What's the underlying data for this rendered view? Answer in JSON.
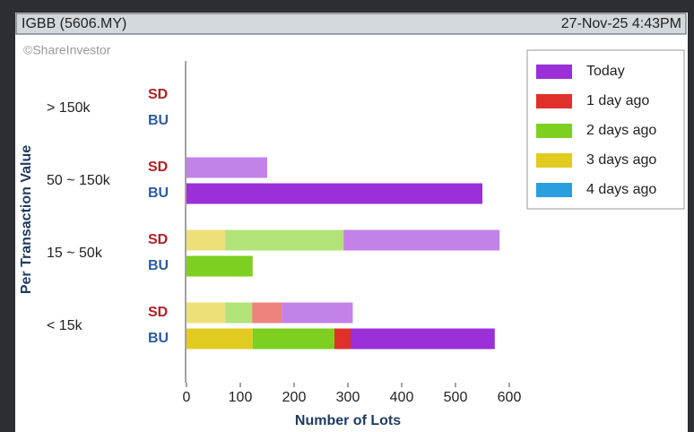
{
  "chart_data": {
    "type": "stacked-horizontal-bar",
    "header": {
      "symbol": "IGBB (5606.MY)",
      "timestamp": "27-Nov-25 4:43PM"
    },
    "credit": "©ShareInvestor",
    "categories": [
      "> 150k",
      "50 ~ 150k",
      "15 ~ 50k",
      "< 15k"
    ],
    "sides": [
      "SD",
      "BU"
    ],
    "xlabel": "Number of Lots",
    "ylabel": "Per Transaction Value",
    "xlim": [
      0,
      600
    ],
    "xticks": [
      0,
      100,
      200,
      300,
      400,
      500,
      600
    ],
    "legend": "top-right",
    "series": [
      {
        "name": "Today",
        "color": "#9b2fd8",
        "values": [
          [
            0,
            0
          ],
          [
            150,
            550
          ],
          [
            290,
            0
          ],
          [
            132,
            268
          ]
        ]
      },
      {
        "name": "1 day ago",
        "color": "#e0302a",
        "values": [
          [
            0,
            0
          ],
          [
            0,
            0
          ],
          [
            0,
            0
          ],
          [
            55,
            30
          ]
        ]
      },
      {
        "name": "2 days ago",
        "color": "#7dd020",
        "values": [
          [
            0,
            0
          ],
          [
            0,
            0
          ],
          [
            220,
            123
          ],
          [
            50,
            152
          ]
        ]
      },
      {
        "name": "3 days ago",
        "color": "#e2cb20",
        "values": [
          [
            0,
            0
          ],
          [
            0,
            0
          ],
          [
            72,
            0
          ],
          [
            72,
            123
          ]
        ]
      },
      {
        "name": "4 days ago",
        "color": "#2a9fe0",
        "values": [
          [
            0,
            0
          ],
          [
            0,
            0
          ],
          [
            0,
            0
          ],
          [
            0,
            0
          ]
        ]
      }
    ]
  }
}
